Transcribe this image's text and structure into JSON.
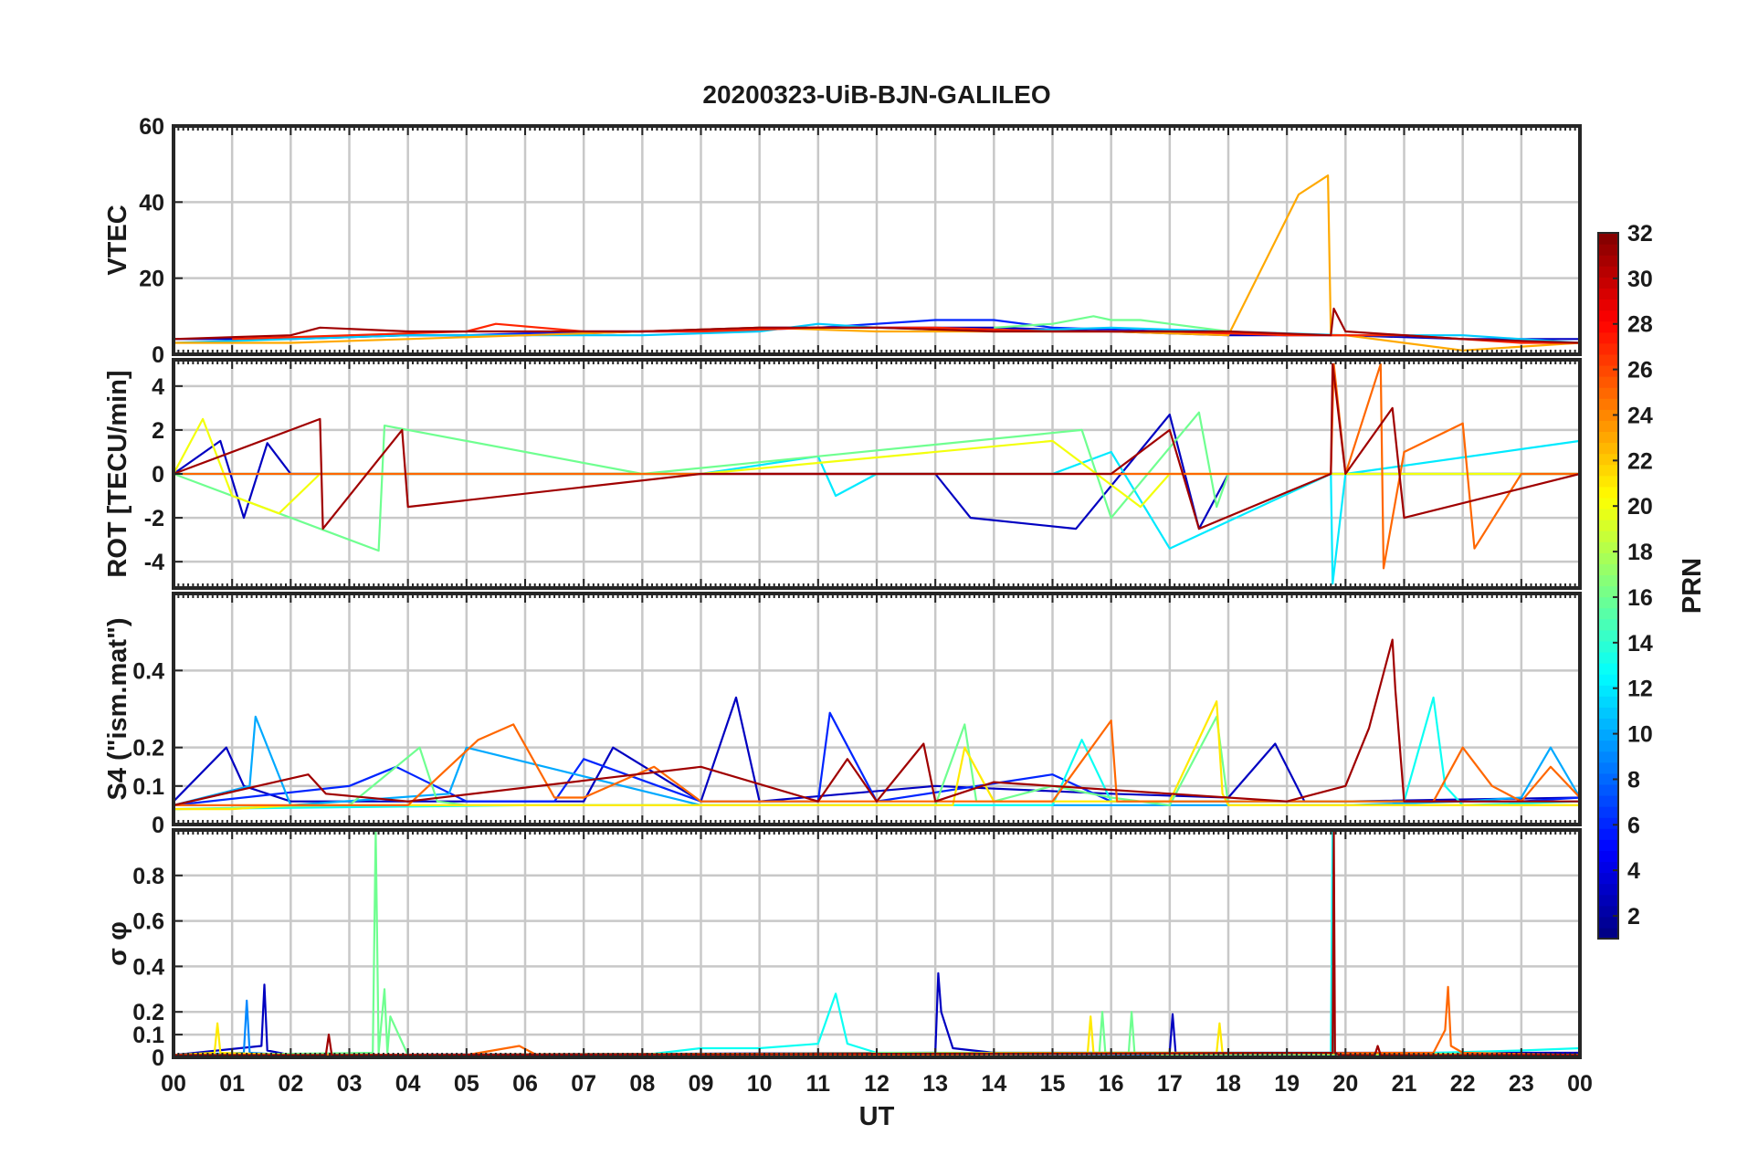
{
  "chart_data": {
    "type": "line",
    "title": "20200323-UiB-BJN-GALILEO",
    "xlabel": "UT",
    "x_unit": "hours",
    "xlim": [
      0,
      24
    ],
    "x_tick_labels": [
      "00",
      "01",
      "02",
      "03",
      "04",
      "05",
      "06",
      "07",
      "08",
      "09",
      "10",
      "11",
      "12",
      "13",
      "14",
      "15",
      "16",
      "17",
      "18",
      "19",
      "20",
      "21",
      "22",
      "23",
      "00"
    ],
    "colorbar": {
      "label": "PRN",
      "colormap": "jet",
      "range": [
        1,
        32
      ],
      "tick_labels": [
        "2",
        "4",
        "6",
        "8",
        "10",
        "12",
        "14",
        "16",
        "18",
        "20",
        "22",
        "24",
        "26",
        "28",
        "30",
        "32"
      ]
    },
    "panels": [
      {
        "id": "vtec",
        "ylabel": "VTEC",
        "ylim": [
          0,
          60
        ],
        "y_ticks": [
          0,
          20,
          40,
          60
        ],
        "y_tick_labels": [
          "0",
          "20",
          "40",
          "60"
        ],
        "series": [
          {
            "prn": 3,
            "x": [
              0,
              2,
              4,
              6,
              8,
              10,
              12,
              14,
              16,
              18,
              20,
              22,
              24
            ],
            "y": [
              4,
              4,
              5,
              5,
              6,
              7,
              7,
              7,
              6,
              5,
              5,
              4,
              4
            ]
          },
          {
            "prn": 6,
            "x": [
              3,
              5,
              7,
              9,
              11,
              13,
              14,
              15,
              17,
              19
            ],
            "y": [
              5,
              5,
              6,
              6,
              7,
              9,
              9,
              7,
              6,
              5
            ]
          },
          {
            "prn": 11,
            "x": [
              0,
              2,
              4,
              6,
              8,
              10,
              11,
              12,
              14,
              16,
              18,
              20,
              22,
              23,
              24
            ],
            "y": [
              3,
              4,
              5,
              5,
              5,
              6,
              8,
              7,
              6,
              7,
              6,
              5,
              5,
              4,
              3
            ]
          },
          {
            "prn": 16,
            "x": [
              14,
              15,
              15.7,
              16,
              16.5,
              17,
              18
            ],
            "y": [
              7,
              8,
              10,
              9,
              9,
              8,
              6
            ]
          },
          {
            "prn": 23,
            "x": [
              0,
              2,
              4,
              6,
              8,
              10,
              12,
              14,
              16,
              18,
              19.2,
              19.7,
              19.75,
              20,
              22,
              24
            ],
            "y": [
              3,
              3,
              4,
              5,
              6,
              7,
              6,
              6,
              6,
              5,
              42,
              47,
              5,
              5,
              1,
              3
            ]
          },
          {
            "prn": 27,
            "x": [
              1,
              3,
              5,
              5.5,
              7,
              9,
              11,
              13,
              15,
              17,
              19,
              21,
              23,
              24
            ],
            "y": [
              4,
              5,
              6,
              8,
              6,
              6,
              7,
              7,
              6,
              6,
              5,
              5,
              3,
              3
            ]
          },
          {
            "prn": 31,
            "x": [
              0,
              2,
              2.5,
              4,
              6,
              8,
              10,
              12,
              14,
              16,
              18,
              19.75,
              19.8,
              20,
              22,
              24
            ],
            "y": [
              4,
              5,
              7,
              6,
              6,
              6,
              7,
              7,
              6,
              6,
              6,
              5,
              12,
              6,
              4,
              3
            ]
          }
        ]
      },
      {
        "id": "rot",
        "ylabel": "ROT [TECU/min]",
        "ylim": [
          -5.2,
          5.2
        ],
        "y_ticks": [
          -4,
          -2,
          0,
          2,
          4
        ],
        "y_tick_labels": [
          "-4",
          "-2",
          "0",
          "2",
          "4"
        ],
        "series": [
          {
            "prn": 3,
            "x": [
              0,
              0.8,
              1.2,
              1.6,
              2,
              6,
              10,
              13,
              13.6,
              15.4,
              17,
              17.5,
              18,
              24
            ],
            "y": [
              0,
              1.5,
              -2,
              1.4,
              0,
              0,
              0,
              0,
              -2,
              -2.5,
              2.7,
              -2.5,
              0,
              0
            ]
          },
          {
            "prn": 12,
            "x": [
              0,
              1,
              2,
              3.5,
              9,
              11,
              11.3,
              12,
              15,
              16,
              17,
              19.75,
              19.78,
              20,
              24
            ],
            "y": [
              0,
              0,
              0,
              0,
              0,
              0.8,
              -1,
              0,
              0,
              1,
              -3.4,
              0,
              -5,
              0,
              1.5
            ]
          },
          {
            "prn": 16,
            "x": [
              0,
              3.5,
              3.6,
              8,
              15.5,
              16,
              17.5,
              17.8,
              18,
              24
            ],
            "y": [
              0,
              -3.5,
              2.2,
              0,
              2,
              -2,
              2.8,
              -1.5,
              0,
              0
            ]
          },
          {
            "prn": 20,
            "x": [
              0,
              0.5,
              1,
              1.8,
              2.5,
              9,
              15,
              16.5,
              17,
              24
            ],
            "y": [
              0,
              2.5,
              -1,
              -1.8,
              0,
              0,
              1.5,
              -1.5,
              0,
              0
            ]
          },
          {
            "prn": 25,
            "x": [
              0,
              2,
              6,
              9,
              12,
              19.75,
              19.8,
              20,
              20.6,
              20.65,
              21,
              22,
              22.2,
              23,
              24
            ],
            "y": [
              0,
              0,
              0,
              0,
              0,
              0,
              5,
              0,
              5,
              -4.3,
              1,
              2.3,
              -3.4,
              0,
              0
            ]
          },
          {
            "prn": 31,
            "x": [
              0,
              2.5,
              2.55,
              3.9,
              4,
              9,
              12,
              16,
              17,
              17.5,
              19.75,
              19.78,
              20,
              20.8,
              21,
              24
            ],
            "y": [
              0,
              2.5,
              -2.5,
              2,
              -1.5,
              0,
              0,
              0,
              2,
              -2.5,
              0,
              5,
              0,
              3,
              -2,
              0
            ]
          }
        ]
      },
      {
        "id": "s4",
        "ylabel": "S4 (\"ism.mat\")",
        "ylim": [
          0,
          0.6
        ],
        "y_ticks": [
          0,
          0.1,
          0.2,
          0.4
        ],
        "y_tick_labels": [
          "0",
          "0.1",
          "0.2",
          "0.4"
        ],
        "series": [
          {
            "prn": 3,
            "x": [
              0,
              0.9,
              1.2,
              2,
              7,
              7.5,
              9,
              9.6,
              10,
              13,
              16,
              18,
              18.8,
              19.3,
              20,
              24
            ],
            "y": [
              0.06,
              0.2,
              0.1,
              0.06,
              0.06,
              0.2,
              0.06,
              0.33,
              0.06,
              0.1,
              0.08,
              0.07,
              0.21,
              0.06,
              0.06,
              0.07
            ]
          },
          {
            "prn": 6,
            "x": [
              0,
              3,
              3.8,
              5,
              6.5,
              7,
              9,
              11,
              11.2,
              12,
              15,
              16,
              23,
              24
            ],
            "y": [
              0.05,
              0.1,
              0.15,
              0.06,
              0.06,
              0.17,
              0.06,
              0.06,
              0.29,
              0.06,
              0.13,
              0.06,
              0.06,
              0.07
            ]
          },
          {
            "prn": 10,
            "x": [
              0,
              1.3,
              1.4,
              2,
              4.7,
              5,
              9,
              12,
              20,
              22,
              23,
              23.5,
              24
            ],
            "y": [
              0.05,
              0.1,
              0.28,
              0.05,
              0.08,
              0.2,
              0.05,
              0.05,
              0.05,
              0.06,
              0.07,
              0.2,
              0.07
            ]
          },
          {
            "prn": 13,
            "x": [
              0,
              6,
              12,
              13.5,
              15,
              15.5,
              16,
              19,
              21,
              21.5,
              21.7,
              22,
              24
            ],
            "y": [
              0.04,
              0.05,
              0.05,
              0.05,
              0.05,
              0.22,
              0.06,
              0.06,
              0.06,
              0.33,
              0.1,
              0.05,
              0.06
            ]
          },
          {
            "prn": 16,
            "x": [
              0,
              3,
              4.2,
              4.5,
              5,
              13,
              13.5,
              13.7,
              14,
              15,
              16,
              17,
              17.8,
              18,
              24
            ],
            "y": [
              0.04,
              0.05,
              0.2,
              0.06,
              0.05,
              0.05,
              0.26,
              0.06,
              0.06,
              0.1,
              0.07,
              0.05,
              0.28,
              0.05,
              0.05
            ]
          },
          {
            "prn": 21,
            "x": [
              0,
              1,
              2,
              12,
              13.3,
              13.5,
              14,
              17,
              17.8,
              17.9,
              18,
              24
            ],
            "y": [
              0.04,
              0.04,
              0.05,
              0.05,
              0.05,
              0.2,
              0.06,
              0.06,
              0.32,
              0.08,
              0.05,
              0.05
            ]
          },
          {
            "prn": 25,
            "x": [
              0,
              4,
              5.2,
              5.8,
              6.5,
              7,
              8.2,
              9,
              11,
              12,
              15,
              16,
              16.1,
              17,
              21.5,
              22,
              22.5,
              23,
              23.5,
              24
            ],
            "y": [
              0.05,
              0.05,
              0.22,
              0.26,
              0.07,
              0.07,
              0.15,
              0.06,
              0.06,
              0.06,
              0.06,
              0.27,
              0.06,
              0.06,
              0.06,
              0.2,
              0.1,
              0.06,
              0.15,
              0.07
            ]
          },
          {
            "prn": 31,
            "x": [
              0,
              2.3,
              2.6,
              4,
              9,
              11,
              11.5,
              12,
              12.8,
              13,
              14,
              19,
              20,
              20.4,
              20.8,
              20.85,
              21,
              24
            ],
            "y": [
              0.05,
              0.13,
              0.08,
              0.06,
              0.15,
              0.06,
              0.17,
              0.06,
              0.21,
              0.06,
              0.11,
              0.06,
              0.1,
              0.25,
              0.48,
              0.35,
              0.06,
              0.06
            ]
          }
        ]
      },
      {
        "id": "sigma_phi",
        "ylabel": "σ φ",
        "ylim": [
          0,
          1
        ],
        "y_ticks": [
          0,
          0.1,
          0.2,
          0.4,
          0.6,
          0.8
        ],
        "y_tick_labels": [
          "0",
          "0.1",
          "0.2",
          "0.4",
          "0.6",
          "0.8"
        ],
        "series": [
          {
            "prn": 3,
            "x": [
              0,
              1.5,
              1.55,
              1.6,
              2,
              13,
              13.05,
              13.1,
              13.3,
              14,
              17,
              17.05,
              17.1,
              19,
              24
            ],
            "y": [
              0.01,
              0.05,
              0.32,
              0.03,
              0.01,
              0.02,
              0.37,
              0.2,
              0.04,
              0.02,
              0.02,
              0.19,
              0.02,
              0.02,
              0.02
            ]
          },
          {
            "prn": 9,
            "x": [
              0,
              1.2,
              1.25,
              1.3,
              2,
              24
            ],
            "y": [
              0.01,
              0.02,
              0.25,
              0.02,
              0.01,
              0.01
            ]
          },
          {
            "prn": 13,
            "x": [
              0,
              8,
              9,
              10,
              11,
              11.3,
              11.5,
              12,
              19.75,
              19.78,
              19.8,
              20,
              23,
              24
            ],
            "y": [
              0.01,
              0.01,
              0.04,
              0.04,
              0.06,
              0.28,
              0.06,
              0.02,
              0.02,
              1,
              0.02,
              0.01,
              0.03,
              0.04
            ]
          },
          {
            "prn": 16,
            "x": [
              0,
              3.4,
              3.45,
              3.5,
              3.6,
              3.65,
              3.7,
              4,
              15.8,
              15.85,
              15.9,
              16.3,
              16.35,
              16.4,
              17,
              24
            ],
            "y": [
              0.01,
              0.02,
              1,
              0.02,
              0.3,
              0.02,
              0.18,
              0.01,
              0.02,
              0.2,
              0.02,
              0.02,
              0.2,
              0.02,
              0.01,
              0.01
            ]
          },
          {
            "prn": 21,
            "x": [
              0,
              0.7,
              0.75,
              0.8,
              2,
              15.6,
              15.65,
              15.7,
              17.8,
              17.85,
              17.9,
              24
            ],
            "y": [
              0.01,
              0.02,
              0.15,
              0.02,
              0.01,
              0.02,
              0.18,
              0.02,
              0.02,
              0.15,
              0.02,
              0.01
            ]
          },
          {
            "prn": 25,
            "x": [
              0,
              5,
              5.9,
              6.2,
              10,
              21.5,
              21.7,
              21.75,
              21.8,
              22,
              24
            ],
            "y": [
              0.01,
              0.01,
              0.05,
              0.01,
              0.01,
              0.02,
              0.12,
              0.31,
              0.05,
              0.02,
              0.01
            ]
          },
          {
            "prn": 31,
            "x": [
              0,
              2.6,
              2.65,
              2.7,
              3,
              19.78,
              19.8,
              19.82,
              19.9,
              20.5,
              20.55,
              20.6,
              24
            ],
            "y": [
              0.01,
              0.01,
              0.1,
              0.01,
              0.01,
              0.02,
              1,
              0.02,
              0.01,
              0.01,
              0.05,
              0.01,
              0.01
            ]
          }
        ]
      }
    ]
  }
}
